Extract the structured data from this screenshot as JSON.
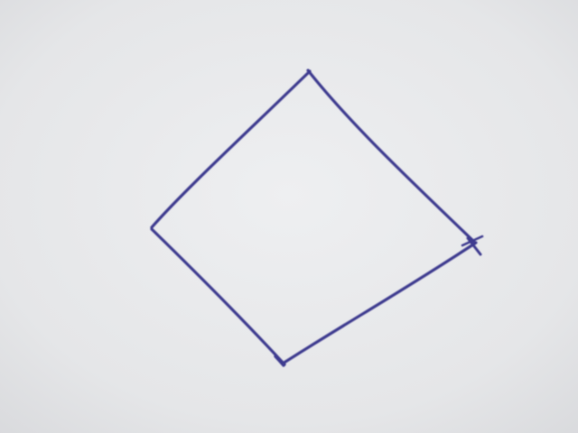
{
  "scene": {
    "subject": "hand-drawn-quadrilateral",
    "colors": {
      "paper": "#e6e7e9",
      "ink": "#3d3a8f"
    }
  }
}
